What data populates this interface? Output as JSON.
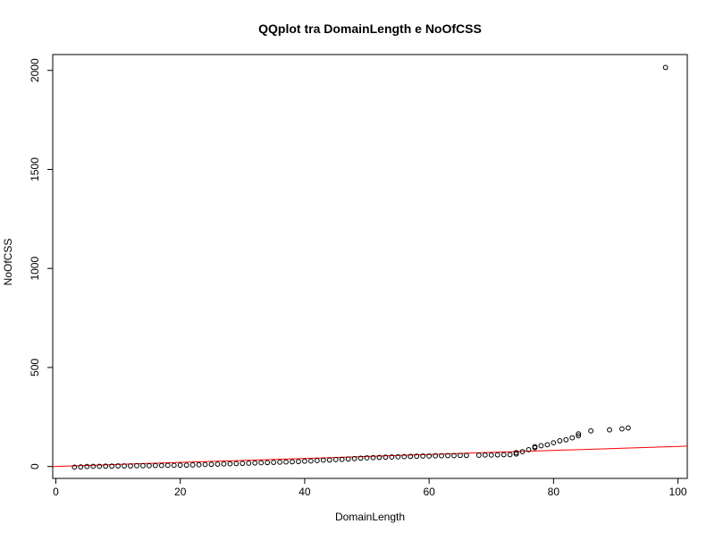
{
  "chart_data": {
    "type": "scatter",
    "title": "QQplot tra DomainLength e NoOfCSS",
    "xlabel": "DomainLength",
    "ylabel": "NoOfCSS",
    "xlim": [
      -0.5,
      101.5
    ],
    "ylim": [
      -60,
      2080
    ],
    "xticks": [
      0,
      20,
      40,
      60,
      80,
      100
    ],
    "yticks": [
      0,
      500,
      1000,
      1500,
      2000
    ],
    "grid": false,
    "marker": "open-circle",
    "marker_color": "#000000",
    "points": [
      [
        3,
        -3
      ],
      [
        4,
        -2
      ],
      [
        5,
        0
      ],
      [
        6,
        1
      ],
      [
        7,
        1
      ],
      [
        8,
        2
      ],
      [
        9,
        2
      ],
      [
        10,
        3
      ],
      [
        11,
        3
      ],
      [
        12,
        3
      ],
      [
        13,
        4
      ],
      [
        14,
        4
      ],
      [
        15,
        4
      ],
      [
        16,
        5
      ],
      [
        17,
        5
      ],
      [
        18,
        6
      ],
      [
        19,
        6
      ],
      [
        20,
        7
      ],
      [
        21,
        7
      ],
      [
        22,
        8
      ],
      [
        23,
        9
      ],
      [
        24,
        10
      ],
      [
        25,
        11
      ],
      [
        26,
        12
      ],
      [
        27,
        13
      ],
      [
        28,
        14
      ],
      [
        29,
        15
      ],
      [
        30,
        16
      ],
      [
        31,
        17
      ],
      [
        32,
        18
      ],
      [
        33,
        19
      ],
      [
        34,
        20
      ],
      [
        35,
        21
      ],
      [
        36,
        22
      ],
      [
        37,
        23
      ],
      [
        38,
        24
      ],
      [
        39,
        25
      ],
      [
        40,
        27
      ],
      [
        41,
        28
      ],
      [
        42,
        30
      ],
      [
        43,
        32
      ],
      [
        44,
        33
      ],
      [
        45,
        35
      ],
      [
        46,
        36
      ],
      [
        47,
        38
      ],
      [
        48,
        40
      ],
      [
        49,
        42
      ],
      [
        50,
        44
      ],
      [
        51,
        45
      ],
      [
        52,
        46
      ],
      [
        53,
        47
      ],
      [
        54,
        48
      ],
      [
        55,
        49
      ],
      [
        56,
        50
      ],
      [
        57,
        51
      ],
      [
        58,
        52
      ],
      [
        59,
        53
      ],
      [
        60,
        53
      ],
      [
        61,
        54
      ],
      [
        62,
        54
      ],
      [
        63,
        55
      ],
      [
        64,
        55
      ],
      [
        65,
        56
      ],
      [
        66,
        56
      ],
      [
        68,
        57
      ],
      [
        69,
        58
      ],
      [
        70,
        58
      ],
      [
        71,
        59
      ],
      [
        72,
        60
      ],
      [
        73,
        60
      ],
      [
        74,
        63
      ],
      [
        74,
        70
      ],
      [
        75,
        75
      ],
      [
        76,
        85
      ],
      [
        77,
        95
      ],
      [
        77,
        100
      ],
      [
        78,
        105
      ],
      [
        79,
        110
      ],
      [
        80,
        120
      ],
      [
        81,
        130
      ],
      [
        82,
        135
      ],
      [
        83,
        145
      ],
      [
        84,
        155
      ],
      [
        84,
        165
      ],
      [
        86,
        180
      ],
      [
        89,
        185
      ],
      [
        91,
        190
      ],
      [
        92,
        195
      ],
      [
        98,
        2015
      ]
    ],
    "reference_line": {
      "color": "#ff0000",
      "from": [
        -0.5,
        0
      ],
      "to": [
        101.5,
        103
      ]
    }
  }
}
